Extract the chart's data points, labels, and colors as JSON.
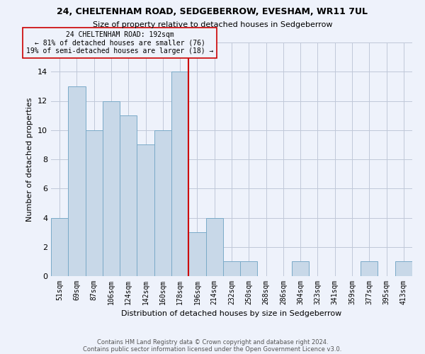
{
  "title1": "24, CHELTENHAM ROAD, SEDGEBERROW, EVESHAM, WR11 7UL",
  "title2": "Size of property relative to detached houses in Sedgeberrow",
  "xlabel": "Distribution of detached houses by size in Sedgeberrow",
  "ylabel": "Number of detached properties",
  "footer1": "Contains HM Land Registry data © Crown copyright and database right 2024.",
  "footer2": "Contains public sector information licensed under the Open Government Licence v3.0.",
  "annotation_title": "24 CHELTENHAM ROAD: 192sqm",
  "annotation_line1": "← 81% of detached houses are smaller (76)",
  "annotation_line2": "19% of semi-detached houses are larger (18) →",
  "bar_color": "#c8d8e8",
  "bar_edgecolor": "#7aaac8",
  "vline_color": "#cc0000",
  "annotation_box_edgecolor": "#cc0000",
  "background_color": "#eef2fb",
  "categories": [
    "51sqm",
    "69sqm",
    "87sqm",
    "106sqm",
    "124sqm",
    "142sqm",
    "160sqm",
    "178sqm",
    "196sqm",
    "214sqm",
    "232sqm",
    "250sqm",
    "268sqm",
    "286sqm",
    "304sqm",
    "323sqm",
    "341sqm",
    "359sqm",
    "377sqm",
    "395sqm",
    "413sqm"
  ],
  "values": [
    4,
    13,
    10,
    12,
    11,
    9,
    10,
    14,
    3,
    4,
    1,
    1,
    0,
    0,
    1,
    0,
    0,
    0,
    1,
    0,
    1
  ],
  "vline_index": 8,
  "ylim": [
    0,
    16
  ],
  "yticks": [
    0,
    2,
    4,
    6,
    8,
    10,
    12,
    14,
    16
  ],
  "grid_color": "#c0c8d8",
  "title1_fontsize": 9,
  "title2_fontsize": 8,
  "ylabel_fontsize": 8,
  "xlabel_fontsize": 8,
  "tick_fontsize": 7,
  "footer_fontsize": 6
}
